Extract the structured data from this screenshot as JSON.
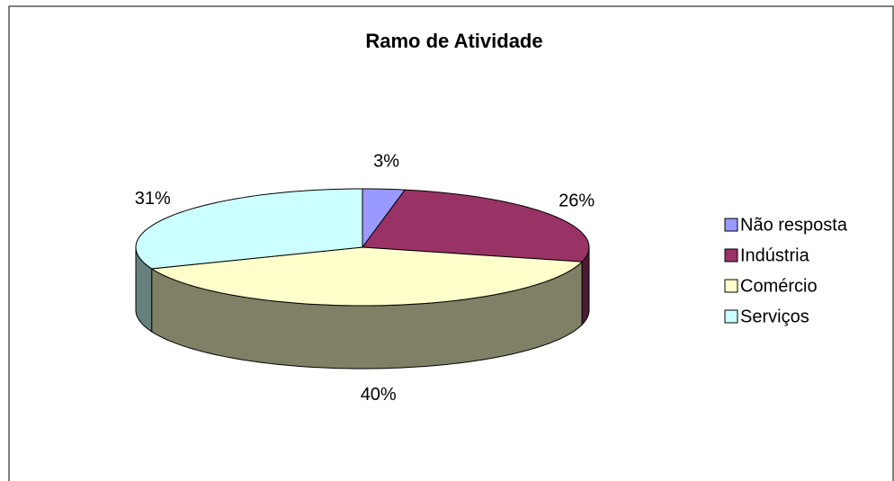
{
  "chart_data": {
    "type": "pie3d",
    "title": "Ramo de Atividade",
    "categories": [
      "Não resposta",
      "Indústria",
      "Comércio",
      "Serviços"
    ],
    "values": [
      3,
      26,
      40,
      31
    ],
    "value_labels": [
      "3%",
      "26%",
      "40%",
      "31%"
    ],
    "colors": [
      "#9999ff",
      "#993366",
      "#ffffcc",
      "#ccffff"
    ],
    "side_colors": [
      "#4d4d80",
      "#4d1a33",
      "#808066",
      "#668080"
    ],
    "legend": "right"
  }
}
